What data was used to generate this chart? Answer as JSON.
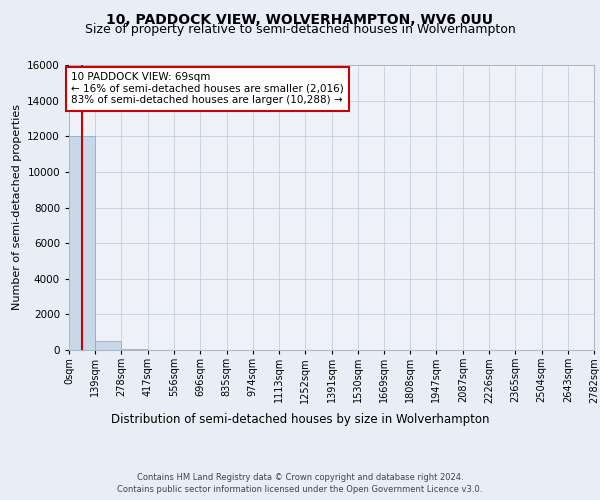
{
  "title1": "10, PADDOCK VIEW, WOLVERHAMPTON, WV6 0UU",
  "title2": "Size of property relative to semi-detached houses in Wolverhampton",
  "xlabel": "Distribution of semi-detached houses by size in Wolverhampton",
  "ylabel": "Number of semi-detached properties",
  "bin_edges": [
    0,
    139,
    278,
    417,
    556,
    696,
    835,
    974,
    1113,
    1252,
    1391,
    1530,
    1669,
    1808,
    1947,
    2087,
    2226,
    2365,
    2504,
    2643,
    2782
  ],
  "bar_heights": [
    12016,
    500,
    60,
    20,
    10,
    5,
    3,
    2,
    1,
    1,
    1,
    1,
    1,
    0,
    0,
    0,
    0,
    0,
    0,
    0
  ],
  "bar_color": "#c8d8e8",
  "bar_edge_color": "#7aaac8",
  "property_size": 69,
  "property_line_color": "#cc0000",
  "annotation_text": "10 PADDOCK VIEW: 69sqm\n← 16% of semi-detached houses are smaller (2,016)\n83% of semi-detached houses are larger (10,288) →",
  "annotation_box_color": "#ffffff",
  "annotation_box_edge": "#cc0000",
  "footer1": "Contains HM Land Registry data © Crown copyright and database right 2024.",
  "footer2": "Contains public sector information licensed under the Open Government Licence v3.0.",
  "bg_color": "#e8eef5",
  "plot_bg_color": "#eef2f8",
  "ylim": [
    0,
    16000
  ],
  "yticks": [
    0,
    2000,
    4000,
    6000,
    8000,
    10000,
    12000,
    14000,
    16000
  ],
  "title_fontsize": 10,
  "subtitle_fontsize": 9,
  "tick_label_fontsize": 7,
  "ylabel_fontsize": 8,
  "xlabel_fontsize": 8.5
}
